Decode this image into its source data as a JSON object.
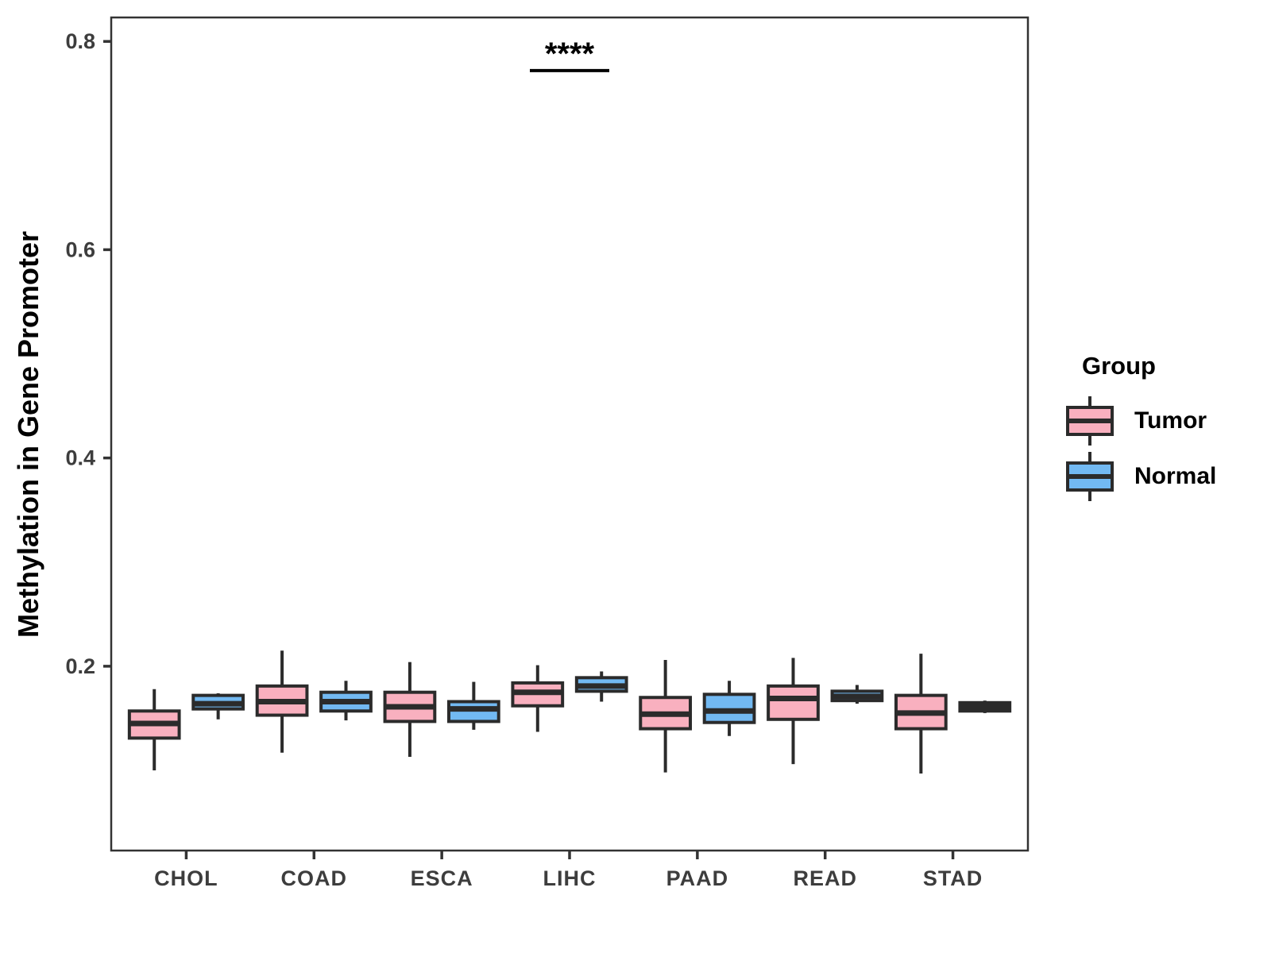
{
  "chart_data": {
    "type": "boxplot",
    "title": "",
    "xlabel": "",
    "ylabel": "Methylation in Gene Promoter",
    "categories": [
      "CHOL",
      "COAD",
      "ESCA",
      "LIHC",
      "PAAD",
      "READ",
      "STAD"
    ],
    "yticks": [
      0.2,
      0.4,
      0.6,
      0.8
    ],
    "ylim": [
      0.023,
      0.823
    ],
    "grid": false,
    "legend_position": "right",
    "stroke_color": "#2B2B2B",
    "panel_border_color": "#333333",
    "tick_text_color": "#3D3D3D",
    "series": [
      {
        "name": "Tumor",
        "fill": "#F9B0BF",
        "boxes": [
          {
            "min": 0.1,
            "q1": 0.131,
            "median": 0.145,
            "q3": 0.157,
            "max": 0.178
          },
          {
            "min": 0.117,
            "q1": 0.153,
            "median": 0.166,
            "q3": 0.181,
            "max": 0.215
          },
          {
            "min": 0.113,
            "q1": 0.147,
            "median": 0.161,
            "q3": 0.175,
            "max": 0.204
          },
          {
            "min": 0.137,
            "q1": 0.162,
            "median": 0.175,
            "q3": 0.184,
            "max": 0.201
          },
          {
            "min": 0.098,
            "q1": 0.14,
            "median": 0.154,
            "q3": 0.17,
            "max": 0.206
          },
          {
            "min": 0.106,
            "q1": 0.149,
            "median": 0.169,
            "q3": 0.181,
            "max": 0.208
          },
          {
            "min": 0.097,
            "q1": 0.14,
            "median": 0.155,
            "q3": 0.172,
            "max": 0.212
          }
        ]
      },
      {
        "name": "Normal",
        "fill": "#72B9F2",
        "boxes": [
          {
            "min": 0.149,
            "q1": 0.159,
            "median": 0.164,
            "q3": 0.172,
            "max": 0.174
          },
          {
            "min": 0.148,
            "q1": 0.157,
            "median": 0.166,
            "q3": 0.175,
            "max": 0.186
          },
          {
            "min": 0.139,
            "q1": 0.147,
            "median": 0.159,
            "q3": 0.166,
            "max": 0.185
          },
          {
            "min": 0.166,
            "q1": 0.176,
            "median": 0.181,
            "q3": 0.189,
            "max": 0.195
          },
          {
            "min": 0.133,
            "q1": 0.146,
            "median": 0.157,
            "q3": 0.173,
            "max": 0.186
          },
          {
            "min": 0.164,
            "q1": 0.167,
            "median": 0.171,
            "q3": 0.176,
            "max": 0.182
          },
          {
            "min": 0.155,
            "q1": 0.157,
            "median": 0.161,
            "q3": 0.165,
            "max": 0.167
          }
        ]
      }
    ],
    "annotation": {
      "label": "****",
      "category": "LIHC",
      "category_index": 3,
      "line_y_value": 0.772
    }
  },
  "legend": {
    "title": "Group",
    "items": [
      {
        "label": "Tumor",
        "color": "#F9B0BF"
      },
      {
        "label": "Normal",
        "color": "#72B9F2"
      }
    ]
  }
}
